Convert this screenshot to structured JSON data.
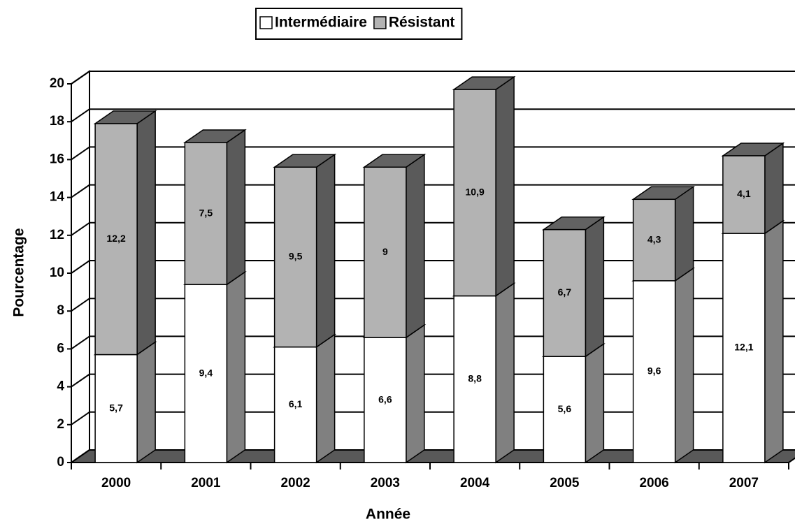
{
  "chart_data": {
    "type": "bar3d_stacked",
    "x_label": "Année",
    "y_label": "Pourcentage",
    "categories": [
      "2000",
      "2001",
      "2002",
      "2003",
      "2004",
      "2005",
      "2006",
      "2007"
    ],
    "series": [
      {
        "name": "Intermédiaire",
        "color": "#ffffff",
        "values": [
          5.7,
          9.4,
          6.1,
          6.6,
          8.8,
          5.6,
          9.6,
          12.1
        ],
        "value_labels": [
          "5,7",
          "9,4",
          "6,1",
          "6,6",
          "8,8",
          "5,6",
          "9,6",
          "12,1"
        ]
      },
      {
        "name": "Résistant",
        "color": "#b3b3b3",
        "values": [
          12.2,
          7.5,
          9.5,
          9,
          10.9,
          6.7,
          4.3,
          4.1
        ],
        "value_labels": [
          "12,2",
          "7,5",
          "9,5",
          "9",
          "10,9",
          "6,7",
          "4,3",
          "4,1"
        ]
      }
    ],
    "ylim": [
      0,
      20
    ],
    "yticks": [
      0,
      2,
      4,
      6,
      8,
      10,
      12,
      14,
      16,
      18,
      20
    ],
    "grid": true,
    "legend": "top"
  }
}
